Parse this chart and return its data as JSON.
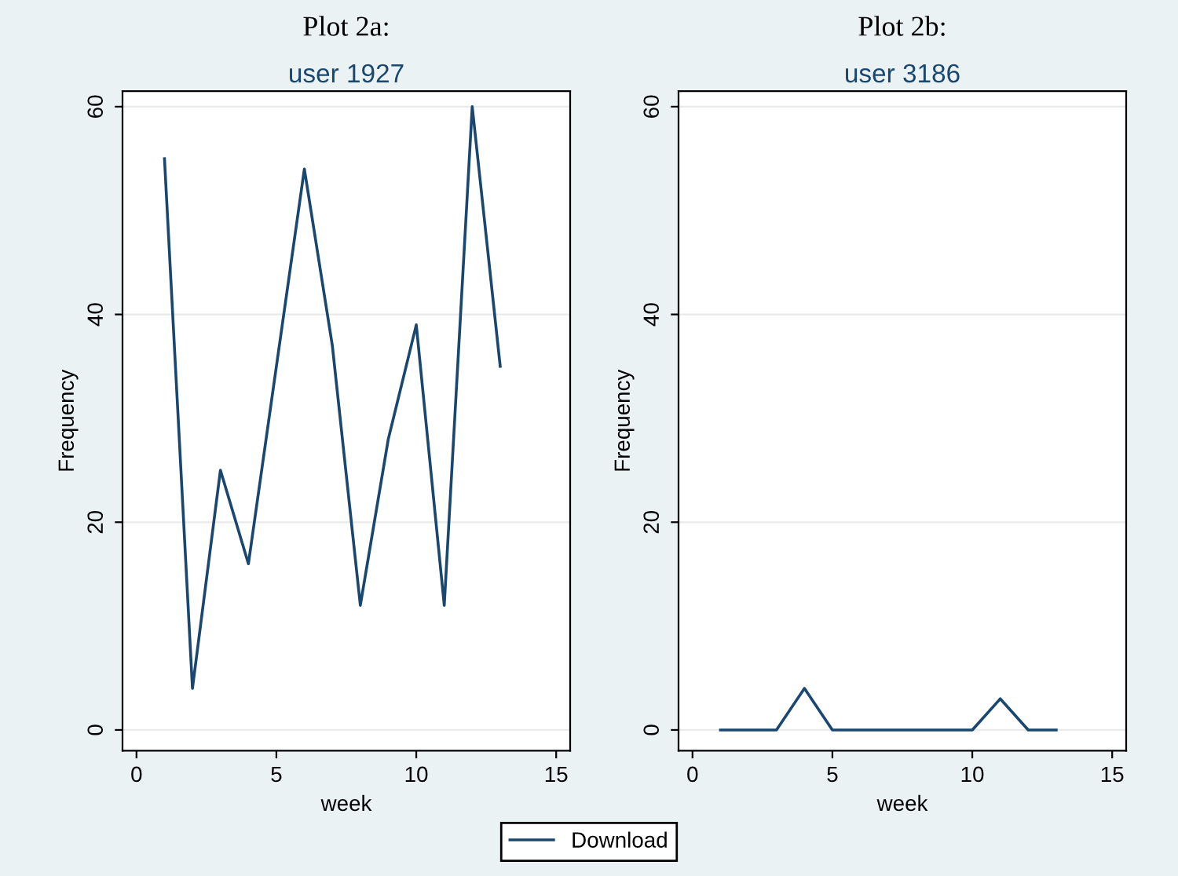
{
  "chart_data": [
    {
      "type": "line",
      "title": "Plot 2a:",
      "subtitle": "user 1927",
      "xlabel": "week",
      "ylabel": "Frequency",
      "x": [
        1,
        2,
        3,
        4,
        5,
        6,
        7,
        8,
        9,
        10,
        11,
        12,
        13
      ],
      "series": [
        {
          "name": "Download",
          "color": "#1a476f",
          "values": [
            55,
            4,
            25,
            16,
            35,
            54,
            37,
            12,
            28,
            39,
            12,
            60,
            35
          ]
        }
      ],
      "xlim": [
        -0.5,
        15.5
      ],
      "ylim": [
        -2,
        61.5
      ],
      "xticks": [
        0,
        5,
        10,
        15
      ],
      "yticks": [
        0,
        20,
        40,
        60
      ],
      "grid": "y",
      "legend": "bottom"
    },
    {
      "type": "line",
      "title": "Plot 2b:",
      "subtitle": "user 3186",
      "xlabel": "week",
      "ylabel": "Frequency",
      "x": [
        1,
        2,
        3,
        4,
        5,
        6,
        7,
        8,
        9,
        10,
        11,
        12,
        13
      ],
      "series": [
        {
          "name": "Download",
          "color": "#1a476f",
          "values": [
            0,
            0,
            0,
            4,
            0,
            0,
            0,
            0,
            0,
            0,
            3,
            0,
            0
          ]
        }
      ],
      "xlim": [
        -0.5,
        15.5
      ],
      "ylim": [
        -2,
        61.5
      ],
      "xticks": [
        0,
        5,
        10,
        15
      ],
      "yticks": [
        0,
        20,
        40,
        60
      ],
      "grid": "y"
    }
  ]
}
